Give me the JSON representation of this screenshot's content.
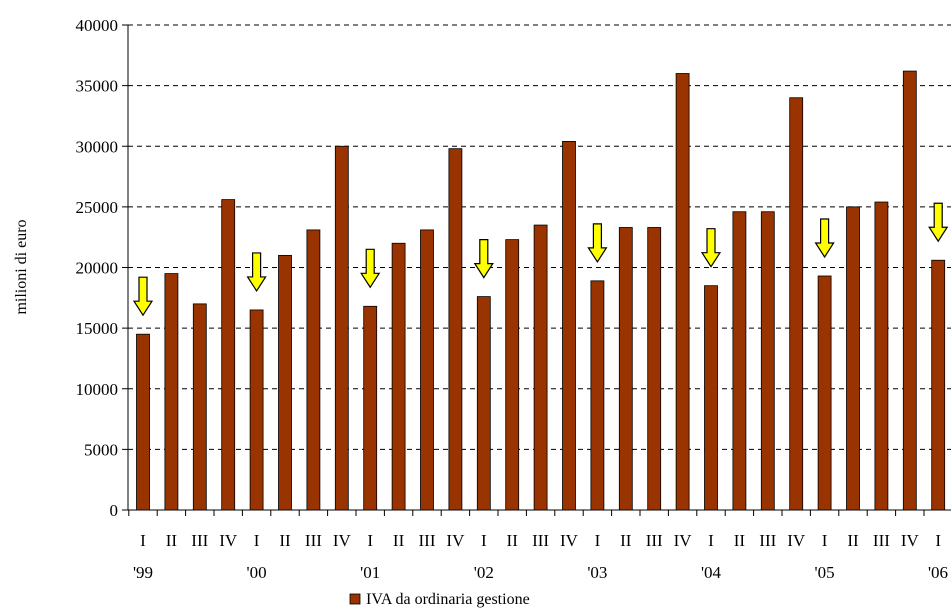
{
  "chart_data": {
    "type": "bar",
    "ylabel": "milioni di euro",
    "ylim": [
      0,
      40000
    ],
    "yticks": [
      "0",
      "5000",
      "10000",
      "15000",
      "20000",
      "25000",
      "30000",
      "35000",
      "40000"
    ],
    "grid": "horizontal-dashed",
    "categories": [
      "I",
      "II",
      "III",
      "IV",
      "I",
      "II",
      "III",
      "IV",
      "I",
      "II",
      "III",
      "IV",
      "I",
      "II",
      "III",
      "IV",
      "I",
      "II",
      "III",
      "IV",
      "I",
      "II",
      "III",
      "IV",
      "I",
      "II",
      "III",
      "IV",
      "I"
    ],
    "years": [
      {
        "label": "'99",
        "index": 0
      },
      {
        "label": "'00",
        "index": 4
      },
      {
        "label": "'01",
        "index": 8
      },
      {
        "label": "'02",
        "index": 12
      },
      {
        "label": "'03",
        "index": 16
      },
      {
        "label": "'04",
        "index": 20
      },
      {
        "label": "'05",
        "index": 24
      },
      {
        "label": "'06",
        "index": 28
      }
    ],
    "series": [
      {
        "name": "IVA da ordinaria gestione",
        "color": "#993300",
        "values": [
          14500,
          19500,
          17000,
          25600,
          16500,
          21000,
          23100,
          30000,
          16800,
          22000,
          23100,
          29800,
          17600,
          22300,
          23500,
          30400,
          18900,
          23300,
          23300,
          36000,
          18500,
          24600,
          24600,
          34000,
          19300,
          25000,
          25400,
          36200,
          20600
        ]
      }
    ],
    "annotations": {
      "type": "downward-arrows",
      "color": "#ffff00",
      "indices": [
        0,
        4,
        8,
        12,
        16,
        20,
        24,
        28
      ]
    },
    "legend": {
      "position": "bottom-center",
      "label": "IVA da ordinaria gestione"
    }
  }
}
